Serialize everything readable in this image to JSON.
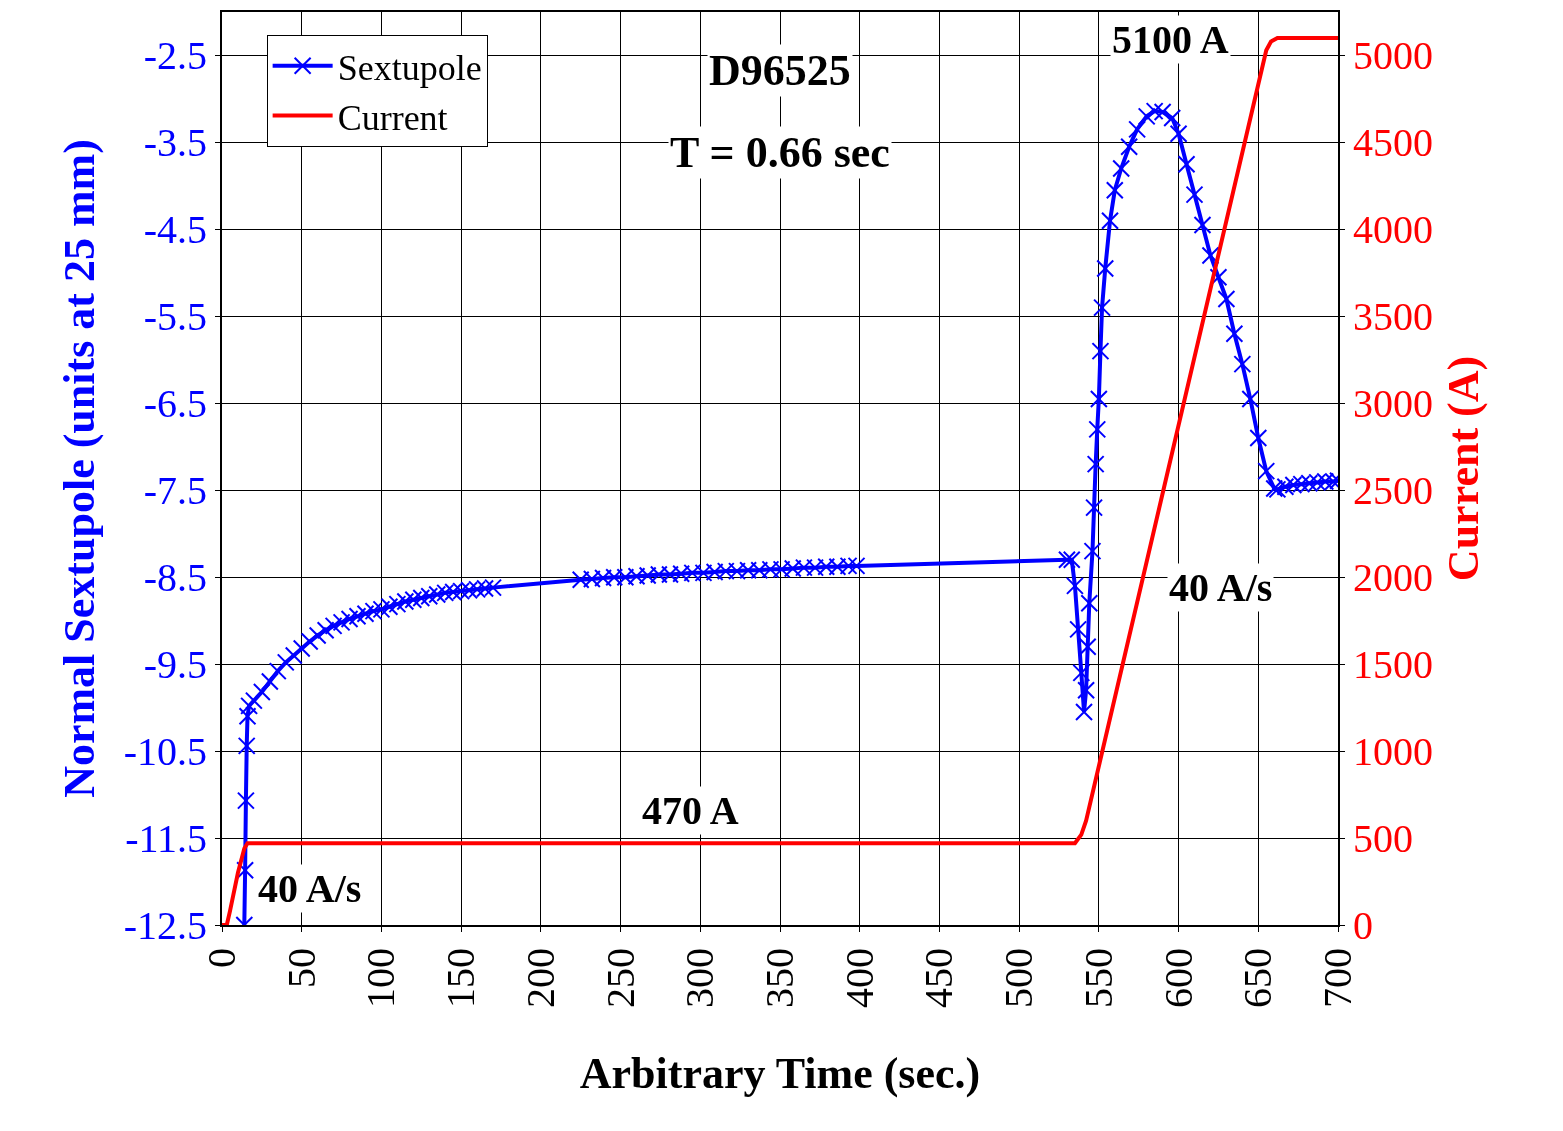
{
  "chart_data": {
    "type": "line",
    "title": "D96525",
    "subtitle": "T = 0.66 sec",
    "xlabel": "Arbitrary Time (sec.)",
    "ylabel": "Normal Sextupole (units at 25 mm)",
    "y2label": "Current (A)",
    "xlim": [
      0,
      700
    ],
    "xticks": [
      0,
      50,
      100,
      150,
      200,
      250,
      300,
      350,
      400,
      450,
      500,
      550,
      600,
      650,
      700
    ],
    "ylim": [
      -12.5,
      -2.0
    ],
    "yticks": [
      -12.5,
      -11.5,
      -10.5,
      -9.5,
      -8.5,
      -7.5,
      -6.5,
      -5.5,
      -4.5,
      -3.5,
      -2.5
    ],
    "y2lim": [
      0,
      5250
    ],
    "y2ticks": [
      0,
      500,
      1000,
      1500,
      2000,
      2500,
      3000,
      3500,
      4000,
      4500,
      5000
    ],
    "grid": true,
    "legend": "top left",
    "series": [
      {
        "name": "Sextupole",
        "color": "#0000ff",
        "marker": "cross",
        "line_style": "solid",
        "x": [
          14,
          14.5,
          15,
          15.5,
          16,
          17,
          20,
          25,
          30,
          35,
          40,
          45,
          50,
          55,
          60,
          65,
          70,
          75,
          80,
          85,
          90,
          95,
          100,
          105,
          110,
          115,
          120,
          125,
          130,
          135,
          140,
          145,
          150,
          155,
          160,
          165,
          170,
          225,
          232,
          239,
          246,
          253,
          260,
          267,
          274,
          281,
          288,
          295,
          302,
          309,
          316,
          323,
          330,
          337,
          344,
          351,
          358,
          365,
          372,
          379,
          386,
          393,
          398,
          530,
          533,
          535,
          537,
          539,
          540.7,
          542,
          543,
          544,
          546,
          547,
          548,
          549,
          550,
          551,
          552,
          554,
          557,
          560,
          564,
          569,
          574,
          580,
          585,
          590,
          596,
          600,
          605,
          610,
          615,
          620,
          625,
          630,
          635,
          640,
          645,
          650,
          655,
          660,
          662,
          667,
          672,
          677,
          682,
          687,
          692,
          697,
          700
        ],
        "values": [
          -12.5,
          -11.87,
          -11.07,
          -10.44,
          -10.1,
          -9.98,
          -9.92,
          -9.82,
          -9.7,
          -9.58,
          -9.48,
          -9.4,
          -9.32,
          -9.24,
          -9.17,
          -9.11,
          -9.06,
          -9.02,
          -8.98,
          -8.95,
          -8.92,
          -8.89,
          -8.87,
          -8.84,
          -8.81,
          -8.78,
          -8.76,
          -8.74,
          -8.72,
          -8.7,
          -8.68,
          -8.67,
          -8.66,
          -8.65,
          -8.64,
          -8.63,
          -8.62,
          -8.53,
          -8.52,
          -8.51,
          -8.5,
          -8.5,
          -8.49,
          -8.48,
          -8.47,
          -8.47,
          -8.46,
          -8.45,
          -8.45,
          -8.44,
          -8.43,
          -8.43,
          -8.42,
          -8.42,
          -8.41,
          -8.41,
          -8.4,
          -8.39,
          -8.39,
          -8.38,
          -8.38,
          -8.37,
          -8.37,
          -8.3,
          -8.3,
          -8.6,
          -9.1,
          -9.6,
          -10.05,
          -9.8,
          -9.3,
          -8.8,
          -8.2,
          -7.7,
          -7.2,
          -6.8,
          -6.45,
          -5.9,
          -5.4,
          -4.95,
          -4.4,
          -4.05,
          -3.8,
          -3.55,
          -3.35,
          -3.2,
          -3.14,
          -3.15,
          -3.22,
          -3.4,
          -3.75,
          -4.1,
          -4.45,
          -4.8,
          -5.05,
          -5.3,
          -5.7,
          -6.05,
          -6.45,
          -6.9,
          -7.28,
          -7.48,
          -7.49,
          -7.46,
          -7.44,
          -7.43,
          -7.42,
          -7.41,
          -7.4,
          -7.4,
          -7.39
        ]
      },
      {
        "name": "Current",
        "color": "#ff0000",
        "marker": "none",
        "line_style": "solid",
        "axis": "y2",
        "x": [
          0,
          3,
          5,
          10,
          14,
          16,
          535,
          539,
          542,
          655,
          658,
          662,
          700
        ],
        "values": [
          0,
          0,
          80,
          300,
          440,
          470,
          470,
          520,
          600,
          5030,
          5080,
          5100,
          5100
        ]
      }
    ],
    "annotations": [
      "5100 A",
      "40 A/s",
      "470 A",
      "40 A/s"
    ]
  }
}
